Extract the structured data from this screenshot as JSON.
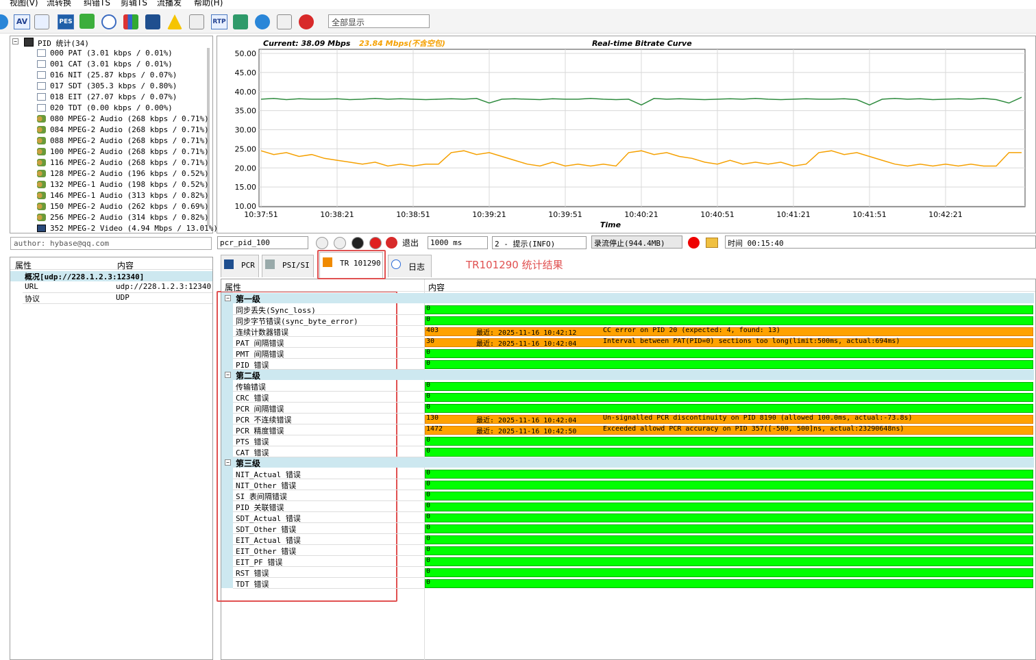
{
  "menu": [
    "视图(V)",
    "流转换",
    "纠错TS",
    "剪辑TS",
    "流播发",
    "帮助(H)"
  ],
  "toolbar": {
    "icons": [
      "AV",
      "PES",
      "RTP"
    ],
    "filter": "全部显示"
  },
  "tree": {
    "root": "PID 统计(34)",
    "items": [
      "000 PAT (3.01 kbps / 0.01%)",
      "001 CAT (3.01 kbps / 0.01%)",
      "016 NIT (25.87 kbps / 0.07%)",
      "017 SDT (305.3 kbps / 0.80%)",
      "018 EIT (27.07 kbps / 0.07%)",
      "020 TDT (0.00 kbps / 0.00%)",
      "080 MPEG-2 Audio (268 kbps / 0.71%)",
      "084 MPEG-2 Audio (268 kbps / 0.71%)",
      "088 MPEG-2 Audio (268 kbps / 0.71%)",
      "100 MPEG-2 Audio (268 kbps / 0.71%)",
      "116 MPEG-2 Audio (268 kbps / 0.71%)",
      "128 MPEG-2 Audio (196 kbps / 0.52%)",
      "132 MPEG-1 Audio (198 kbps / 0.52%)",
      "146 MPEG-1 Audio (313 kbps / 0.82%)",
      "150 MPEG-2 Audio (262 kbps / 0.69%)",
      "256 MPEG-2 Audio (314 kbps / 0.82%)",
      "352 MPEG-2 Video (4.94 Mbps / 13.01%)"
    ]
  },
  "author": "author: hybase@qq.com",
  "props": {
    "headers": [
      "属性",
      "内容"
    ],
    "group": "概况[udp://228.1.2.3:12340]",
    "rows": [
      [
        "URL",
        "udp://228.1.2.3:12340"
      ],
      [
        "协议",
        "UDP"
      ]
    ]
  },
  "bitrate_chart": {
    "type": "line",
    "current": "Current: 38.09 Mbps",
    "current_no_null": "23.84 Mbps(不含空包)",
    "title": "Real-time Bitrate Curve",
    "xlabel": "Time",
    "grid": true,
    "x": [
      0,
      5,
      10,
      15,
      20,
      25,
      30,
      35,
      40,
      45,
      50,
      55,
      60,
      65,
      70,
      75,
      80,
      85,
      90,
      95,
      100,
      105,
      110,
      115,
      120,
      125,
      130,
      135,
      140,
      145,
      150,
      155,
      160,
      165,
      170,
      175,
      180,
      185,
      190,
      195,
      200,
      205,
      210,
      215,
      220,
      225,
      230,
      235,
      240,
      245,
      250,
      255,
      260,
      265,
      270,
      275,
      280,
      285,
      290,
      295,
      300
    ],
    "xlim": [
      0,
      300
    ],
    "xticks": [
      {
        "value": 0,
        "label": "10:37:51"
      },
      {
        "value": 30,
        "label": "10:38:21"
      },
      {
        "value": 60,
        "label": "10:38:51"
      },
      {
        "value": 90,
        "label": "10:39:21"
      },
      {
        "value": 120,
        "label": "10:39:51"
      },
      {
        "value": 150,
        "label": "10:40:21"
      },
      {
        "value": 180,
        "label": "10:40:51"
      },
      {
        "value": 210,
        "label": "10:41:21"
      },
      {
        "value": 240,
        "label": "10:41:51"
      },
      {
        "value": 270,
        "label": "10:42:21"
      }
    ],
    "ylim": [
      10,
      50
    ],
    "yticks": [
      {
        "value": 10,
        "label": "10.00"
      },
      {
        "value": 15,
        "label": "15.00"
      },
      {
        "value": 20,
        "label": "20.00"
      },
      {
        "value": 25,
        "label": "25.00"
      },
      {
        "value": 30,
        "label": "30.00"
      },
      {
        "value": 35,
        "label": "35.00"
      },
      {
        "value": 40,
        "label": "40.00"
      },
      {
        "value": 45,
        "label": "45.00"
      },
      {
        "value": 50,
        "label": "50.00"
      }
    ],
    "series": [
      {
        "color": "#2e8b3e",
        "values": [
          38,
          38.2,
          37.9,
          38.1,
          38,
          38,
          38.1,
          37.9,
          38,
          38.2,
          38,
          38.1,
          38,
          37.9,
          38,
          38.1,
          38,
          38.2,
          37,
          38,
          38.1,
          38,
          37.9,
          38.1,
          38,
          38,
          38.2,
          38,
          37.9,
          38,
          36.5,
          38.2,
          38,
          38.1,
          38,
          37.9,
          38,
          38.1,
          38,
          38.2,
          38,
          37.9,
          38,
          38.1,
          38,
          38,
          38.1,
          37.9,
          36.5,
          38,
          38.2,
          38,
          38.1,
          37.9,
          38,
          38.1,
          38,
          38.2,
          37.9,
          37,
          38.5
        ]
      },
      {
        "color": "#f5a000",
        "values": [
          24.5,
          23.5,
          24,
          23,
          23.5,
          22.5,
          22,
          21.5,
          21,
          21.5,
          20.5,
          21,
          20.5,
          21,
          21,
          24,
          24.5,
          23.5,
          24,
          23,
          22,
          21,
          20.5,
          21.5,
          20.5,
          21,
          20.5,
          21,
          20.5,
          24,
          24.5,
          23.5,
          24,
          23,
          22.5,
          21.5,
          21,
          22,
          21,
          21.5,
          21,
          21.5,
          20.5,
          21,
          24,
          24.5,
          23.5,
          24,
          23,
          22,
          21,
          20.5,
          21,
          20.5,
          21,
          20.5,
          21,
          20.5,
          20.5,
          24,
          24
        ]
      }
    ]
  },
  "controls": {
    "pid": "pcr_pid_100",
    "exit": "退出",
    "interval": "1000 ms",
    "level": "2 - 提示(INFO)",
    "record": "录流停止(944.4MB)",
    "time": "时间 00:15:40"
  },
  "tabs": [
    "PCR",
    "PSI/SI",
    "TR 101290",
    "日志"
  ],
  "annotation": "TR101290 统计结果",
  "results": {
    "headers": [
      "属性",
      "内容"
    ],
    "groups": [
      {
        "name": "第一级",
        "rows": [
          {
            "name": "同步丢失(Sync_loss)",
            "count": 0
          },
          {
            "name": "同步字节错误(sync_byte_error)",
            "count": 0
          },
          {
            "name": "连续计数器错误",
            "count": 403,
            "recent": "最近: 2025-11-16 10:42:12",
            "message": "CC error on PID 20 (expected: 4, found: 13)"
          },
          {
            "name": "PAT 间隔错误",
            "count": 30,
            "recent": "最近: 2025-11-16 10:42:04",
            "message": "Interval between PAT(PID=0) sections too long(limit:500ms, actual:694ms)"
          },
          {
            "name": "PMT 间隔错误",
            "count": 0
          },
          {
            "name": "PID 错误",
            "count": 0
          }
        ]
      },
      {
        "name": "第二级",
        "rows": [
          {
            "name": "传输错误",
            "count": 0
          },
          {
            "name": "CRC 错误",
            "count": 0
          },
          {
            "name": "PCR 间隔错误",
            "count": 0
          },
          {
            "name": "PCR 不连续错误",
            "count": 130,
            "recent": "最近: 2025-11-16 10:42:04",
            "message": "Un-signalled PCR discontinuity on PID 8190 (allowed 100.0ms, actual:-73.8s)"
          },
          {
            "name": "PCR 精度错误",
            "count": 1472,
            "recent": "最近: 2025-11-16 10:42:50",
            "message": "Exceeded allowd PCR accuracy on PID 357([-500, 500]ns, actual:23290648ns)"
          },
          {
            "name": "PTS 错误",
            "count": 0
          },
          {
            "name": "CAT 错误",
            "count": 0
          }
        ]
      },
      {
        "name": "第三级",
        "rows": [
          {
            "name": "NIT_Actual 错误",
            "count": 0
          },
          {
            "name": "NIT_Other 错误",
            "count": 0
          },
          {
            "name": "SI 表间隔错误",
            "count": 0
          },
          {
            "name": "PID 关联错误",
            "count": 0
          },
          {
            "name": "SDT_Actual 错误",
            "count": 0
          },
          {
            "name": "SDT_Other 错误",
            "count": 0
          },
          {
            "name": "EIT_Actual 错误",
            "count": 0
          },
          {
            "name": "EIT_Other 错误",
            "count": 0
          },
          {
            "name": "EIT_PF 错误",
            "count": 0
          },
          {
            "name": "RST 错误",
            "count": 0
          },
          {
            "name": "TDT 错误",
            "count": 0
          }
        ]
      }
    ]
  }
}
